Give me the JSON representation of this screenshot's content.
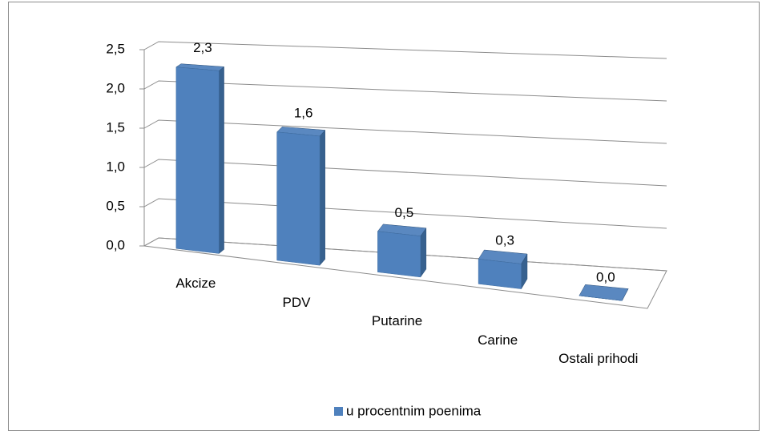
{
  "chart_data": {
    "type": "bar3d",
    "categories": [
      "Akcize",
      "PDV",
      "Putarine",
      "Carine",
      "Ostali prihodi"
    ],
    "series": [
      {
        "name": "u procentnim poenima",
        "color": "#4f81bd",
        "values": [
          2.3,
          1.6,
          0.5,
          0.3,
          0.0
        ],
        "value_labels": [
          "2,3",
          "1,6",
          "0,5",
          "0,3",
          "0,0"
        ]
      }
    ],
    "ylim": [
      0,
      2.5
    ],
    "yticks": [
      {
        "value": 0,
        "label": "0,0"
      },
      {
        "value": 0.5,
        "label": "0,5"
      },
      {
        "value": 1,
        "label": "1,0"
      },
      {
        "value": 1.5,
        "label": "1,5"
      },
      {
        "value": 2,
        "label": "2,0"
      },
      {
        "value": 2.5,
        "label": "2,5"
      }
    ],
    "grid": true,
    "legend": "bottom"
  }
}
